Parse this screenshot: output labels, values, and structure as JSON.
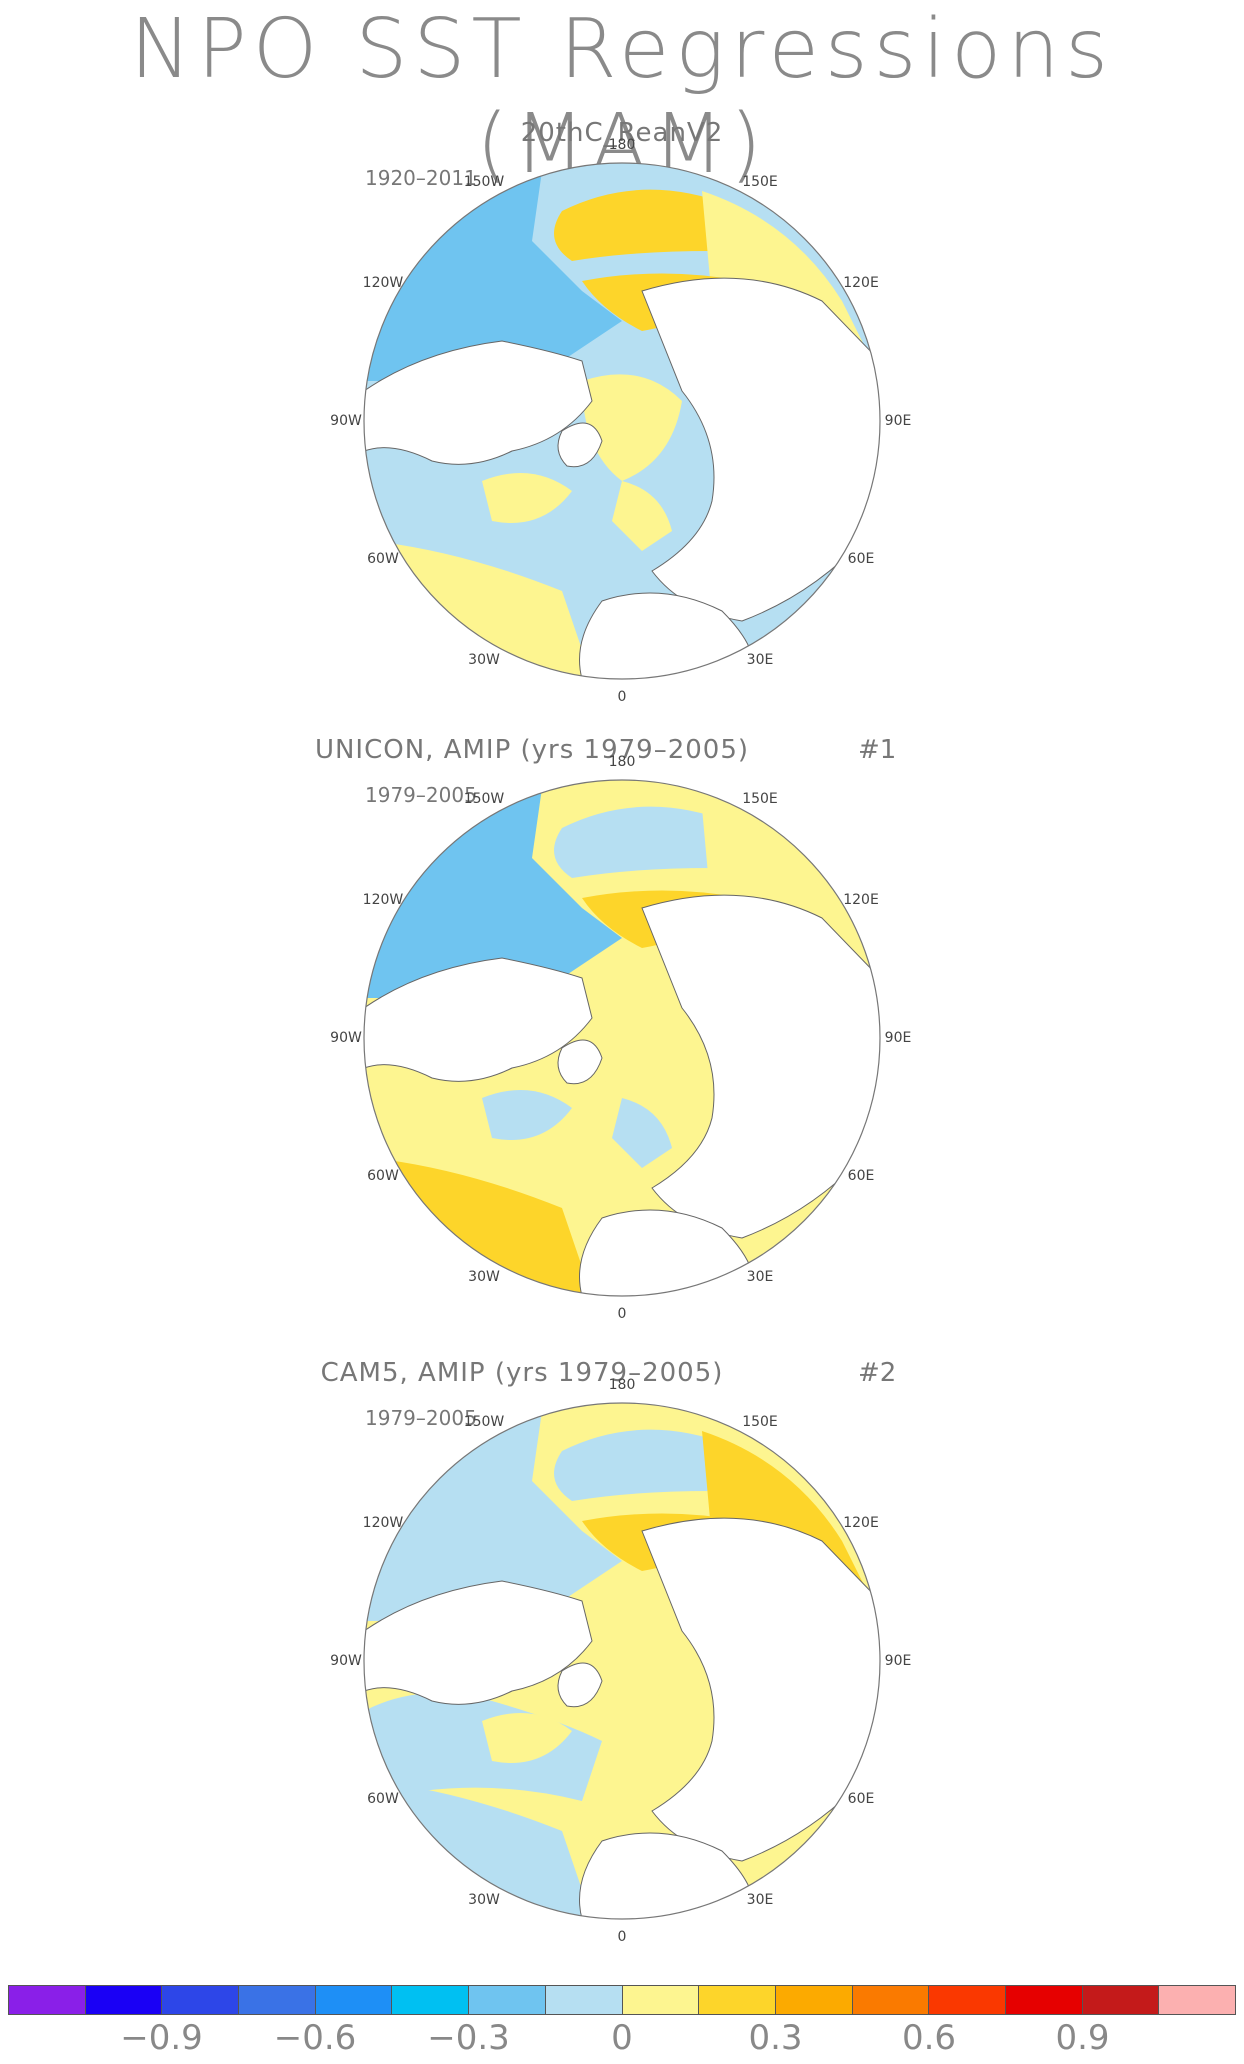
{
  "title": "NPO SST Regressions (MAM)",
  "panels": [
    {
      "title": "20thC_ReanV2",
      "number": "",
      "period": "1920–2011"
    },
    {
      "title": "UNICON, AMIP (yrs 1979–2005)",
      "number": "#1",
      "period": "1979–2005"
    },
    {
      "title": "CAM5, AMIP (yrs 1979–2005)",
      "number": "#2",
      "period": "1979–2005"
    }
  ],
  "longitude_labels": {
    "l180": "180",
    "l150w": "150W",
    "l150e": "150E",
    "l120w": "120W",
    "l120e": "120E",
    "l90w": "90W",
    "l90e": "90E",
    "l60w": "60W",
    "l60e": "60E",
    "l30w": "30W",
    "l30e": "30E",
    "l0": "0"
  },
  "colorbar": {
    "colors": [
      "#8a1fe8",
      "#1a00f5",
      "#2d46e8",
      "#3a72e6",
      "#1e8ff6",
      "#00c0f2",
      "#6fc4f0",
      "#b6dff2",
      "#fdf590",
      "#fdd52a",
      "#fcaa00",
      "#fa7a00",
      "#fa3800",
      "#e60000",
      "#c41a1a",
      "#fcb0b0"
    ],
    "labels": [
      "−0.9",
      "−0.6",
      "−0.3",
      "0",
      "0.3",
      "0.6",
      "0.9"
    ]
  },
  "legend_colors": {
    "land": "#ffffff",
    "coast": "#666666",
    "neg_weak": "#b6dff2",
    "neg_mod": "#6fc4f0",
    "neg_strong": "#3a9be8",
    "pos_weak": "#fdf590",
    "pos_mod": "#fdd52a",
    "pos_strong": "#fcaa00"
  }
}
